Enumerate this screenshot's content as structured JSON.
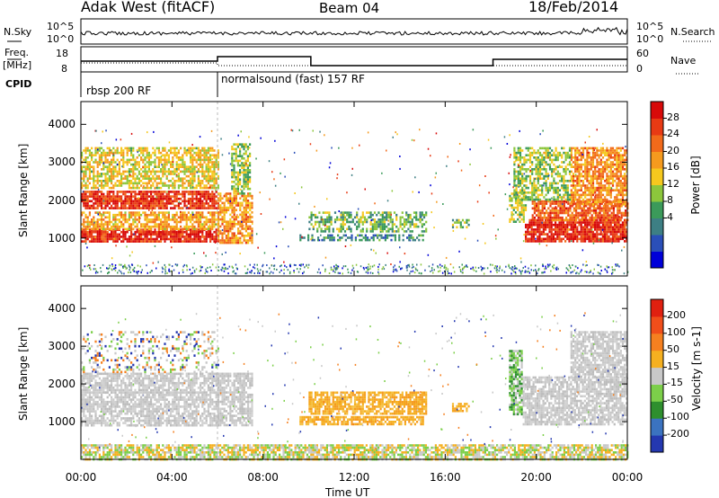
{
  "header": {
    "radar": "Adak West (fitACF)",
    "beam": "Beam 04",
    "date": "18/Feb/2014"
  },
  "status_panels": {
    "nsky_label": "N.Sky",
    "nsearch_label": "N.Search",
    "noise_ticks": [
      "10^5",
      "10^0"
    ],
    "freq_label": "Freq.",
    "freq_unit": "[MHz]",
    "freq_ticks": [
      "18",
      "8"
    ],
    "nave_label": "Nave",
    "nave_ticks": [
      "60",
      "0"
    ],
    "cpid_label": "CPID",
    "cpid_segments": [
      {
        "text": "rbsp 200 RF",
        "start_h": 0,
        "end_h": 6
      },
      {
        "text": "normalsound (fast) 157 RF",
        "start_h": 6,
        "end_h": 24
      }
    ]
  },
  "chart_data": [
    {
      "type": "heatmap",
      "name": "power",
      "ylabel": "Slant Range [km]",
      "ylim": [
        0,
        4600
      ],
      "yticks": [
        1000,
        2000,
        3000,
        4000
      ],
      "xlim": [
        0,
        24
      ],
      "colorbar": {
        "label": "Power [dB]",
        "ticks": [
          "28",
          "24",
          "20",
          "16",
          "12",
          "8",
          "4"
        ],
        "colors": [
          "#0000d8",
          "#2a4fb8",
          "#3d7f84",
          "#3b9a5a",
          "#8cc63c",
          "#f5c81e",
          "#f59a1e",
          "#f26a1a",
          "#e83a14",
          "#d80a0a"
        ]
      },
      "regions": [
        {
          "t0": 0.0,
          "t1": 6.0,
          "r0": 900,
          "r1": 1250,
          "v": 0.95
        },
        {
          "t0": 0.0,
          "t1": 6.0,
          "r0": 1250,
          "r1": 1700,
          "v": 0.65
        },
        {
          "t0": 0.0,
          "t1": 6.0,
          "r0": 1800,
          "r1": 2250,
          "v": 0.9
        },
        {
          "t0": 0.0,
          "t1": 6.0,
          "r0": 2300,
          "r1": 3400,
          "v": 0.55
        },
        {
          "t0": 6.0,
          "t1": 7.5,
          "r0": 900,
          "r1": 2200,
          "v": 0.7
        },
        {
          "t0": 6.6,
          "t1": 7.4,
          "r0": 2200,
          "r1": 3500,
          "v": 0.45
        },
        {
          "t0": 9.6,
          "t1": 15.0,
          "r0": 950,
          "r1": 1100,
          "v": 0.25
        },
        {
          "t0": 10.0,
          "t1": 15.2,
          "r0": 1200,
          "r1": 1700,
          "v": 0.4
        },
        {
          "t0": 16.3,
          "t1": 17.0,
          "r0": 1300,
          "r1": 1500,
          "v": 0.4
        },
        {
          "t0": 18.8,
          "t1": 19.5,
          "r0": 1400,
          "r1": 2200,
          "v": 0.45
        },
        {
          "t0": 19.5,
          "t1": 24.0,
          "r0": 900,
          "r1": 1500,
          "v": 0.95
        },
        {
          "t0": 19.8,
          "t1": 24.0,
          "r0": 1500,
          "r1": 2000,
          "v": 0.8
        },
        {
          "t0": 21.5,
          "t1": 24.0,
          "r0": 1900,
          "r1": 3400,
          "v": 0.7
        },
        {
          "t0": 19.0,
          "t1": 21.5,
          "r0": 2000,
          "r1": 3400,
          "v": 0.45
        }
      ]
    },
    {
      "type": "heatmap",
      "name": "velocity",
      "ylabel": "Slant Range [km]",
      "ylim": [
        0,
        4600
      ],
      "yticks": [
        1000,
        2000,
        3000,
        4000
      ],
      "xlim": [
        0,
        24
      ],
      "xlabel": "Time UT",
      "xticks": [
        "00:00",
        "04:00",
        "08:00",
        "12:00",
        "16:00",
        "20:00",
        "00:00"
      ],
      "xtick_hours": [
        0,
        4,
        8,
        12,
        16,
        20,
        24
      ],
      "colorbar": {
        "label": "Velocity [m s-1]",
        "ticks": [
          "200",
          "100",
          "50",
          "15",
          "-15",
          "-50",
          "-100",
          "-200"
        ],
        "colors": [
          "#2438b0",
          "#3b73c0",
          "#2e8f2e",
          "#7ccf4a",
          "#c8c8c8",
          "#f5b020",
          "#f58020",
          "#f04e1a",
          "#e02010"
        ]
      },
      "regions": [
        {
          "t0": 0.0,
          "t1": 6.0,
          "r0": 900,
          "r1": 1800,
          "v": "gray"
        },
        {
          "t0": 0.0,
          "t1": 6.0,
          "r0": 1800,
          "r1": 2300,
          "v": "gray"
        },
        {
          "t0": 0.0,
          "t1": 6.0,
          "r0": 2300,
          "r1": 3400,
          "v": "sparse"
        },
        {
          "t0": 6.0,
          "t1": 7.5,
          "r0": 900,
          "r1": 2300,
          "v": "gray"
        },
        {
          "t0": 9.6,
          "t1": 15.0,
          "r0": 950,
          "r1": 1150,
          "v": "orange"
        },
        {
          "t0": 10.0,
          "t1": 15.2,
          "r0": 1200,
          "r1": 1800,
          "v": "orange"
        },
        {
          "t0": 16.3,
          "t1": 17.0,
          "r0": 1300,
          "r1": 1500,
          "v": "orange"
        },
        {
          "t0": 18.8,
          "t1": 19.4,
          "r0": 1200,
          "r1": 2900,
          "v": "green"
        },
        {
          "t0": 19.4,
          "t1": 24.0,
          "r0": 900,
          "r1": 2200,
          "v": "gray"
        },
        {
          "t0": 21.5,
          "t1": 24.0,
          "r0": 2200,
          "r1": 3400,
          "v": "gray"
        },
        {
          "t0": 0.0,
          "t1": 24.0,
          "r0": 0,
          "r1": 400,
          "v": "ground"
        }
      ]
    }
  ]
}
